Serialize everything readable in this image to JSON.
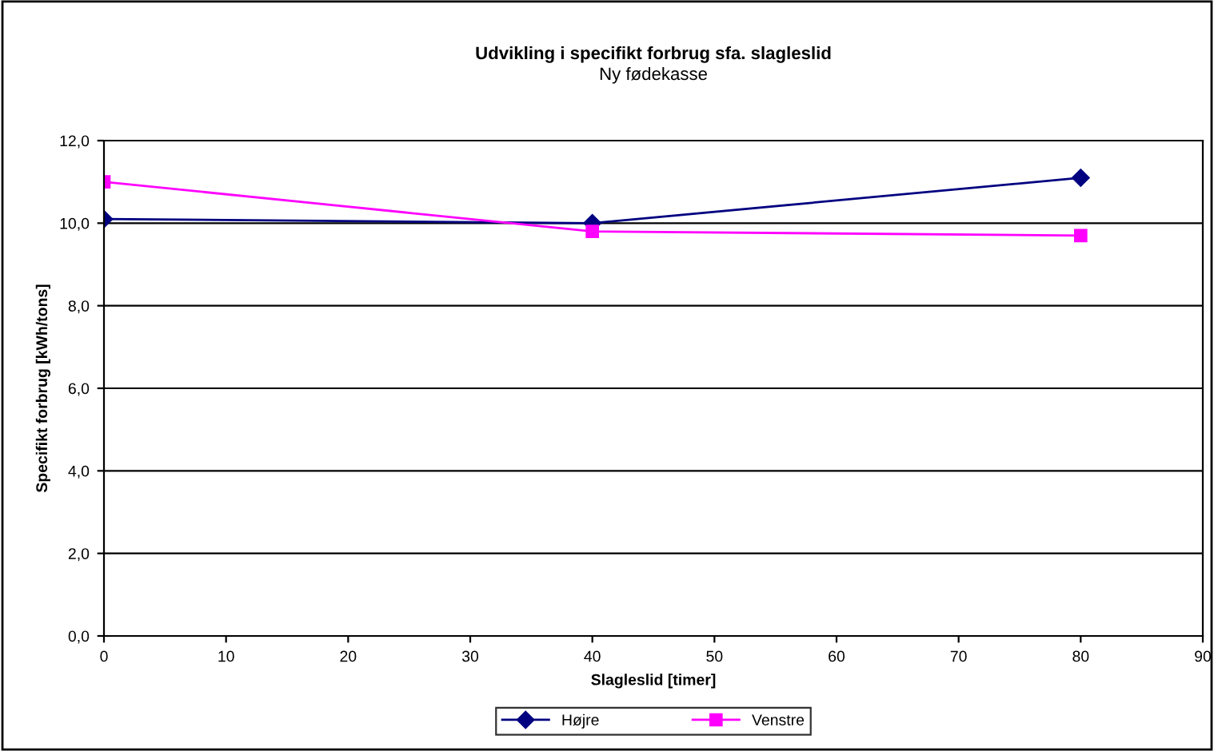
{
  "chart_data": {
    "type": "line",
    "title": "Udvikling i specifikt forbrug sfa. slagleslid",
    "subtitle": "Ny fødekasse",
    "xlabel": "Slagleslid [timer]",
    "ylabel": "Specifikt forbrug [kWh/tons]",
    "x": [
      0,
      40,
      80
    ],
    "series": [
      {
        "name": "Højre",
        "color": "#000080",
        "marker": "diamond",
        "values": [
          10.1,
          10.0,
          11.1
        ]
      },
      {
        "name": "Venstre",
        "color": "#ff00ff",
        "marker": "square",
        "values": [
          11.0,
          9.8,
          9.7
        ]
      }
    ],
    "xlim": [
      0,
      90
    ],
    "xticks": [
      0,
      10,
      20,
      30,
      40,
      50,
      60,
      70,
      80,
      90
    ],
    "ylim": [
      0,
      12
    ],
    "yticks": [
      {
        "value": 0,
        "label": "0,0"
      },
      {
        "value": 2,
        "label": "2,0"
      },
      {
        "value": 4,
        "label": "4,0"
      },
      {
        "value": 6,
        "label": "6,0"
      },
      {
        "value": 8,
        "label": "8,0"
      },
      {
        "value": 10,
        "label": "10,0"
      },
      {
        "value": 12,
        "label": "12,0"
      }
    ],
    "grid": "y",
    "legend": "bottom",
    "line_style": "solid"
  }
}
